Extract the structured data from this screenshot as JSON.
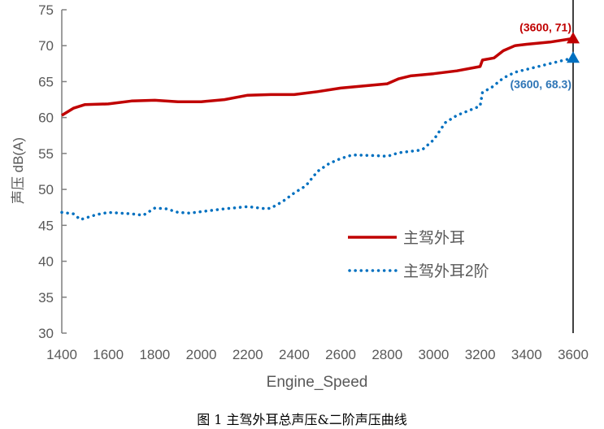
{
  "chart_data": {
    "type": "line",
    "title": "",
    "xlabel": "Engine_Speed",
    "ylabel": "声压 dB(A)",
    "xlim": [
      1400,
      3600
    ],
    "ylim": [
      30,
      75
    ],
    "xticks": [
      1400,
      1600,
      1800,
      2000,
      2200,
      2400,
      2600,
      2800,
      3000,
      3200,
      3400,
      3600
    ],
    "yticks": [
      30,
      35,
      40,
      45,
      50,
      55,
      60,
      65,
      70,
      75
    ],
    "grid": false,
    "legend_position": "center-right",
    "series": [
      {
        "name": "主驾外耳",
        "color": "#C00000",
        "style": "solid",
        "x": [
          1400,
          1450,
          1500,
          1600,
          1700,
          1800,
          1900,
          2000,
          2100,
          2200,
          2300,
          2400,
          2500,
          2600,
          2700,
          2800,
          2850,
          2900,
          3000,
          3100,
          3200,
          3210,
          3260,
          3300,
          3350,
          3400,
          3500,
          3600
        ],
        "y": [
          60.3,
          61.3,
          61.8,
          61.9,
          62.3,
          62.4,
          62.2,
          62.2,
          62.5,
          63.1,
          63.2,
          63.2,
          63.6,
          64.1,
          64.4,
          64.7,
          65.4,
          65.8,
          66.1,
          66.5,
          67.1,
          68.0,
          68.3,
          69.3,
          70.0,
          70.2,
          70.5,
          71.0
        ]
      },
      {
        "name": "主驾外耳2阶",
        "color": "#0070C0",
        "style": "dotted",
        "x": [
          1400,
          1450,
          1480,
          1550,
          1600,
          1700,
          1750,
          1800,
          1850,
          1900,
          1950,
          2000,
          2100,
          2200,
          2280,
          2300,
          2350,
          2400,
          2450,
          2500,
          2550,
          2600,
          2650,
          2750,
          2800,
          2850,
          2950,
          3000,
          3050,
          3100,
          3200,
          3210,
          3250,
          3300,
          3350,
          3400,
          3500,
          3600
        ],
        "y": [
          46.8,
          46.6,
          45.8,
          46.5,
          46.8,
          46.6,
          46.4,
          47.4,
          47.3,
          46.8,
          46.7,
          46.9,
          47.3,
          47.6,
          47.3,
          47.4,
          48.3,
          49.5,
          50.5,
          52.5,
          53.6,
          54.3,
          54.8,
          54.7,
          54.6,
          55.1,
          55.5,
          56.9,
          59.3,
          60.3,
          61.6,
          63.5,
          64.2,
          65.5,
          66.3,
          66.7,
          67.5,
          68.3
        ]
      }
    ],
    "annotations": [
      {
        "text": "(3600, 71)",
        "x": 3600,
        "y": 71,
        "color": "#C00000"
      },
      {
        "text": "(3600, 68.3)",
        "x": 3600,
        "y": 68.3,
        "color": "#2E75B6"
      }
    ]
  },
  "caption": "图 1    主驾外耳总声压&二阶声压曲线"
}
